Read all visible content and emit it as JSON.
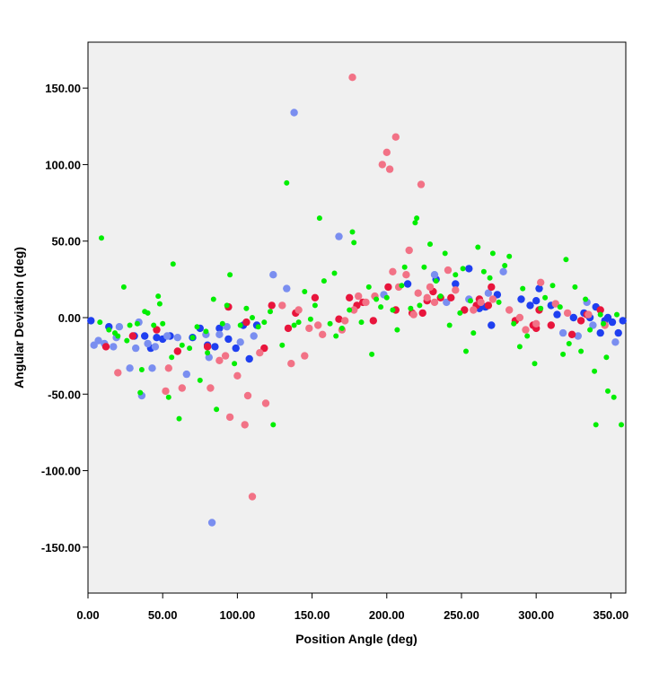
{
  "chart_data": {
    "type": "scatter",
    "title": "",
    "xlabel": "Position Angle (deg)",
    "ylabel": "Angular Deviation (deg)",
    "xlim": [
      0,
      360
    ],
    "ylim": [
      -180,
      180
    ],
    "grid": false,
    "legend": "none",
    "background": "#f0f0f0",
    "x_ticks": [
      0,
      50,
      100,
      150,
      200,
      250,
      300,
      350
    ],
    "x_tick_labels": [
      "0.00",
      "50.00",
      "100.00",
      "150.00",
      "200.00",
      "250.00",
      "300.00",
      "350.00"
    ],
    "y_ticks": [
      150,
      100,
      50,
      0,
      -50,
      -100,
      -150
    ],
    "y_tick_labels": [
      "150.00",
      "100.00",
      "50.00",
      "0.00",
      "-50.00",
      "-100.00",
      "-150.00"
    ],
    "series": [
      {
        "color": "#1f3ff0",
        "marker_size": "large",
        "points": [
          [
            2,
            -2
          ],
          [
            14,
            -6
          ],
          [
            31,
            -12
          ],
          [
            38,
            -12
          ],
          [
            42,
            -20
          ],
          [
            46,
            -13
          ],
          [
            50,
            -14
          ],
          [
            55,
            -12
          ],
          [
            70,
            -13
          ],
          [
            75,
            -7
          ],
          [
            80,
            -18
          ],
          [
            85,
            -19
          ],
          [
            88,
            -7
          ],
          [
            94,
            -14
          ],
          [
            99,
            -20
          ],
          [
            104,
            -5
          ],
          [
            108,
            -27
          ],
          [
            113,
            -5
          ],
          [
            214,
            22
          ],
          [
            233,
            25
          ],
          [
            246,
            22
          ],
          [
            255,
            32
          ],
          [
            262,
            6
          ],
          [
            266,
            7
          ],
          [
            270,
            -5
          ],
          [
            274,
            15
          ],
          [
            290,
            12
          ],
          [
            296,
            8
          ],
          [
            300,
            11
          ],
          [
            302,
            19
          ],
          [
            310,
            8
          ],
          [
            314,
            2
          ],
          [
            325,
            0
          ],
          [
            332,
            3
          ],
          [
            336,
            0
          ],
          [
            340,
            7
          ],
          [
            343,
            -10
          ],
          [
            346,
            -2
          ],
          [
            348,
            0
          ],
          [
            351,
            -3
          ],
          [
            355,
            -10
          ],
          [
            358,
            -2
          ]
        ]
      },
      {
        "color": "#7a8ef0",
        "marker_size": "large",
        "points": [
          [
            4,
            -18
          ],
          [
            7,
            -15
          ],
          [
            11,
            -17
          ],
          [
            17,
            -19
          ],
          [
            19,
            -13
          ],
          [
            21,
            -6
          ],
          [
            28,
            -33
          ],
          [
            32,
            -20
          ],
          [
            34,
            -3
          ],
          [
            36,
            -51
          ],
          [
            40,
            -17
          ],
          [
            43,
            -33
          ],
          [
            45,
            -19
          ],
          [
            53,
            -12
          ],
          [
            60,
            -13
          ],
          [
            66,
            -37
          ],
          [
            79,
            -11
          ],
          [
            81,
            -26
          ],
          [
            83,
            -134
          ],
          [
            88,
            -11
          ],
          [
            93,
            -6
          ],
          [
            102,
            -16
          ],
          [
            111,
            -12
          ],
          [
            124,
            28
          ],
          [
            133,
            19
          ],
          [
            138,
            134
          ],
          [
            168,
            53
          ],
          [
            198,
            15
          ],
          [
            232,
            28
          ],
          [
            240,
            10
          ],
          [
            255,
            12
          ],
          [
            268,
            16
          ],
          [
            278,
            30
          ],
          [
            318,
            -10
          ],
          [
            328,
            -12
          ],
          [
            334,
            10
          ],
          [
            338,
            -5
          ],
          [
            353,
            -16
          ]
        ]
      },
      {
        "color": "#e8153c",
        "marker_size": "large",
        "points": [
          [
            12,
            -19
          ],
          [
            30,
            -12
          ],
          [
            46,
            -8
          ],
          [
            60,
            -22
          ],
          [
            80,
            -19
          ],
          [
            94,
            7
          ],
          [
            106,
            -3
          ],
          [
            118,
            -20
          ],
          [
            123,
            8
          ],
          [
            134,
            -7
          ],
          [
            139,
            3
          ],
          [
            152,
            13
          ],
          [
            168,
            -1
          ],
          [
            175,
            13
          ],
          [
            180,
            8
          ],
          [
            184,
            10
          ],
          [
            191,
            -2
          ],
          [
            201,
            20
          ],
          [
            206,
            5
          ],
          [
            217,
            3
          ],
          [
            224,
            3
          ],
          [
            227,
            11
          ],
          [
            231,
            17
          ],
          [
            236,
            13
          ],
          [
            243,
            13
          ],
          [
            252,
            5
          ],
          [
            260,
            8
          ],
          [
            262,
            12
          ],
          [
            268,
            8
          ],
          [
            270,
            20
          ],
          [
            286,
            -2
          ],
          [
            298,
            -5
          ],
          [
            300,
            -7
          ],
          [
            302,
            5
          ],
          [
            310,
            -5
          ],
          [
            324,
            -11
          ],
          [
            330,
            -2
          ],
          [
            334,
            2
          ],
          [
            343,
            5
          ]
        ]
      },
      {
        "color": "#f27286",
        "marker_size": "large",
        "points": [
          [
            20,
            -36
          ],
          [
            52,
            -48
          ],
          [
            54,
            -33
          ],
          [
            63,
            -46
          ],
          [
            82,
            -46
          ],
          [
            88,
            -28
          ],
          [
            92,
            -25
          ],
          [
            95,
            -65
          ],
          [
            100,
            -38
          ],
          [
            105,
            -70
          ],
          [
            107,
            -51
          ],
          [
            110,
            -117
          ],
          [
            115,
            -23
          ],
          [
            119,
            -56
          ],
          [
            130,
            8
          ],
          [
            136,
            -30
          ],
          [
            141,
            5
          ],
          [
            145,
            -25
          ],
          [
            148,
            -7
          ],
          [
            154,
            -5
          ],
          [
            157,
            -11
          ],
          [
            170,
            -8
          ],
          [
            172,
            -2
          ],
          [
            177,
            157
          ],
          [
            178,
            5
          ],
          [
            181,
            14
          ],
          [
            186,
            10
          ],
          [
            192,
            14
          ],
          [
            197,
            100
          ],
          [
            200,
            108
          ],
          [
            202,
            97
          ],
          [
            204,
            30
          ],
          [
            206,
            118
          ],
          [
            208,
            20
          ],
          [
            213,
            28
          ],
          [
            215,
            44
          ],
          [
            218,
            2
          ],
          [
            221,
            16
          ],
          [
            223,
            87
          ],
          [
            227,
            13
          ],
          [
            229,
            20
          ],
          [
            232,
            10
          ],
          [
            241,
            31
          ],
          [
            246,
            18
          ],
          [
            258,
            5
          ],
          [
            263,
            10
          ],
          [
            271,
            12
          ],
          [
            282,
            5
          ],
          [
            289,
            0
          ],
          [
            293,
            -8
          ],
          [
            300,
            -4
          ],
          [
            303,
            23
          ],
          [
            313,
            9
          ],
          [
            321,
            3
          ],
          [
            335,
            2
          ],
          [
            346,
            -5
          ]
        ]
      },
      {
        "color": "#00ee00",
        "marker_size": "small",
        "points": [
          [
            8,
            -3
          ],
          [
            9,
            52
          ],
          [
            14,
            -8
          ],
          [
            18,
            -10
          ],
          [
            20,
            -12
          ],
          [
            24,
            20
          ],
          [
            26,
            -15
          ],
          [
            28,
            -5
          ],
          [
            33,
            -4
          ],
          [
            35,
            -49
          ],
          [
            36,
            -34
          ],
          [
            38,
            4
          ],
          [
            40,
            3
          ],
          [
            44,
            -5
          ],
          [
            47,
            14
          ],
          [
            48,
            9
          ],
          [
            50,
            -4
          ],
          [
            54,
            -52
          ],
          [
            56,
            -26
          ],
          [
            57,
            35
          ],
          [
            61,
            -66
          ],
          [
            63,
            -18
          ],
          [
            68,
            -20
          ],
          [
            70,
            -13
          ],
          [
            73,
            -6
          ],
          [
            75,
            -41
          ],
          [
            79,
            -9
          ],
          [
            80,
            -23
          ],
          [
            84,
            12
          ],
          [
            86,
            -60
          ],
          [
            90,
            -4
          ],
          [
            93,
            8
          ],
          [
            95,
            28
          ],
          [
            98,
            -30
          ],
          [
            102,
            -5
          ],
          [
            106,
            6
          ],
          [
            110,
            0
          ],
          [
            114,
            -6
          ],
          [
            118,
            -3
          ],
          [
            122,
            4
          ],
          [
            124,
            -70
          ],
          [
            130,
            -18
          ],
          [
            133,
            88
          ],
          [
            138,
            -5
          ],
          [
            141,
            -3
          ],
          [
            145,
            17
          ],
          [
            149,
            -1
          ],
          [
            152,
            8
          ],
          [
            155,
            65
          ],
          [
            158,
            24
          ],
          [
            162,
            -4
          ],
          [
            165,
            29
          ],
          [
            166,
            -12
          ],
          [
            170,
            -7
          ],
          [
            175,
            5
          ],
          [
            177,
            56
          ],
          [
            178,
            49
          ],
          [
            183,
            -3
          ],
          [
            188,
            20
          ],
          [
            190,
            -24
          ],
          [
            193,
            12
          ],
          [
            196,
            7
          ],
          [
            200,
            13
          ],
          [
            204,
            5
          ],
          [
            207,
            -8
          ],
          [
            210,
            21
          ],
          [
            212,
            33
          ],
          [
            216,
            6
          ],
          [
            219,
            62
          ],
          [
            220,
            65
          ],
          [
            222,
            8
          ],
          [
            225,
            33
          ],
          [
            229,
            48
          ],
          [
            233,
            24
          ],
          [
            236,
            14
          ],
          [
            239,
            42
          ],
          [
            242,
            -5
          ],
          [
            246,
            28
          ],
          [
            249,
            3
          ],
          [
            251,
            32
          ],
          [
            253,
            -22
          ],
          [
            256,
            11
          ],
          [
            258,
            -10
          ],
          [
            261,
            46
          ],
          [
            265,
            30
          ],
          [
            269,
            26
          ],
          [
            271,
            42
          ],
          [
            275,
            10
          ],
          [
            279,
            34
          ],
          [
            282,
            40
          ],
          [
            285,
            -4
          ],
          [
            289,
            -19
          ],
          [
            291,
            19
          ],
          [
            294,
            -12
          ],
          [
            299,
            -30
          ],
          [
            303,
            6
          ],
          [
            306,
            13
          ],
          [
            311,
            21
          ],
          [
            316,
            7
          ],
          [
            318,
            -24
          ],
          [
            320,
            38
          ],
          [
            322,
            -17
          ],
          [
            326,
            20
          ],
          [
            330,
            -22
          ],
          [
            333,
            12
          ],
          [
            336,
            -8
          ],
          [
            339,
            -35
          ],
          [
            340,
            -70
          ],
          [
            343,
            2
          ],
          [
            345,
            -4
          ],
          [
            347,
            -26
          ],
          [
            348,
            -48
          ],
          [
            352,
            -52
          ],
          [
            354,
            2
          ],
          [
            357,
            -70
          ]
        ]
      }
    ]
  }
}
